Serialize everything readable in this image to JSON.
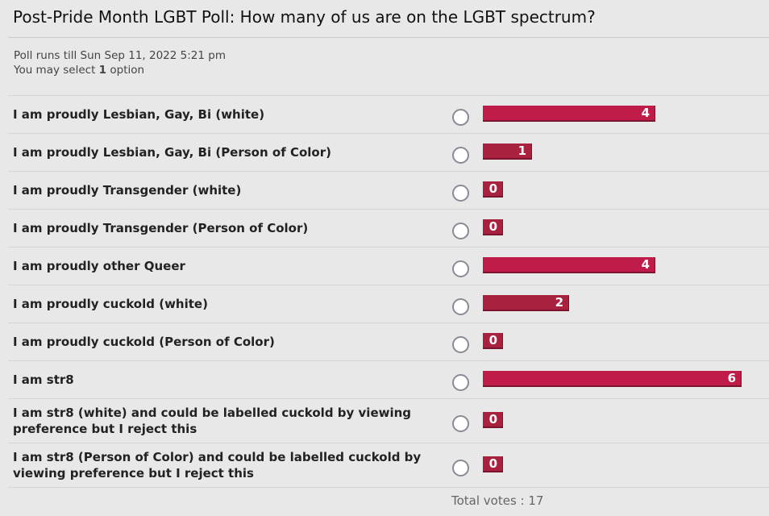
{
  "poll": {
    "title": "Post-Pride Month LGBT Poll: How many of us are on the LGBT spectrum?",
    "runs_till": "Poll runs till Sun Sep 11, 2022 5:21 pm",
    "select_prefix": "You may select ",
    "select_count": "1",
    "select_suffix": " option",
    "total_label": "Total votes : 17",
    "total_votes": 17,
    "colors": {
      "bar_high": "#c01c4a",
      "bar_low": "#a8213f"
    },
    "options": [
      {
        "label": "I am proudly Lesbian, Gay, Bi (white)",
        "votes": "4"
      },
      {
        "label": "I am proudly Lesbian, Gay, Bi (Person of Color)",
        "votes": "1"
      },
      {
        "label": "I am proudly Transgender (white)",
        "votes": "0"
      },
      {
        "label": "I am proudly Transgender (Person of Color)",
        "votes": "0"
      },
      {
        "label": "I am proudly other Queer",
        "votes": "4"
      },
      {
        "label": "I am proudly cuckold (white)",
        "votes": "2"
      },
      {
        "label": "I am proudly cuckold (Person of Color)",
        "votes": "0"
      },
      {
        "label": "I am str8",
        "votes": "6"
      },
      {
        "label": "I am str8 (white) and could be labelled cuckold by viewing preference but I reject this",
        "votes": "0"
      },
      {
        "label": "I am str8 (Person of Color) and could be labelled cuckold by viewing preference but I reject this",
        "votes": "0"
      }
    ]
  }
}
